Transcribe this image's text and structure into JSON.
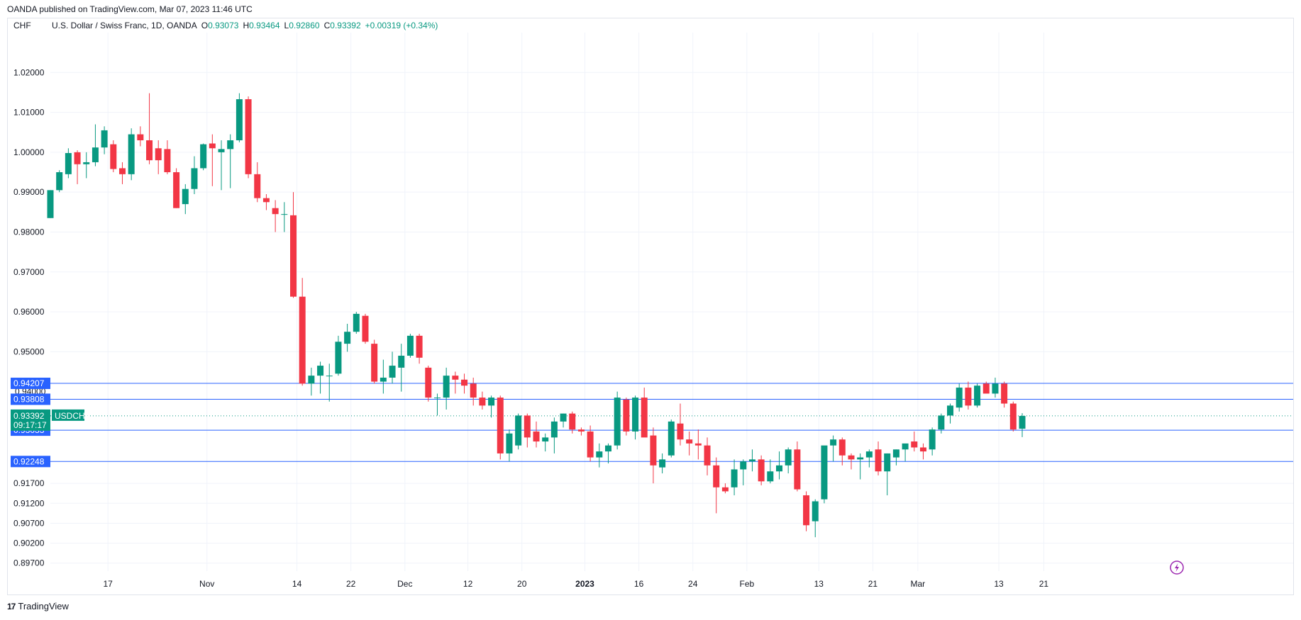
{
  "publisher_line": "OANDA published on TradingView.com, Mar 07, 2023 11:46 UTC",
  "footer": {
    "logo": "TradingView"
  },
  "colors": {
    "up": "#089981",
    "down": "#f23645",
    "level": "#2962ff",
    "grid": "#f0f3fa",
    "price": "#089981"
  },
  "chart_data": {
    "type": "candlestick",
    "currency": "CHF",
    "instrument": "U.S. Dollar / Swiss Franc, 1D, OANDA",
    "ohlc_legend": {
      "o_label": "O",
      "o": "0.93073",
      "h_label": "H",
      "h": "0.93464",
      "l_label": "L",
      "l": "0.92860",
      "c_label": "C",
      "c": "0.93392",
      "change": "+0.00319 (+0.34%)"
    },
    "y_ticks": [
      "1.02000",
      "1.01000",
      "1.00000",
      "0.99000",
      "0.98000",
      "0.97000",
      "0.96000",
      "0.95000",
      "0.91700",
      "0.91200",
      "0.90700",
      "0.90200",
      "0.89700"
    ],
    "x_ticks": [
      {
        "label": "17",
        "bold": false
      },
      {
        "label": "Nov",
        "bold": false
      },
      {
        "label": "14",
        "bold": false
      },
      {
        "label": "22",
        "bold": false
      },
      {
        "label": "Dec",
        "bold": false
      },
      {
        "label": "12",
        "bold": false
      },
      {
        "label": "20",
        "bold": false
      },
      {
        "label": "2023",
        "bold": true
      },
      {
        "label": "16",
        "bold": false
      },
      {
        "label": "24",
        "bold": false
      },
      {
        "label": "Feb",
        "bold": false
      },
      {
        "label": "13",
        "bold": false
      },
      {
        "label": "21",
        "bold": false
      },
      {
        "label": "Mar",
        "bold": false
      },
      {
        "label": "13",
        "bold": false
      },
      {
        "label": "21",
        "bold": false
      }
    ],
    "levels": [
      {
        "label": "0.94207",
        "value": 0.94207
      },
      {
        "label": "0.93808",
        "value": 0.93808
      },
      {
        "label": "0.93033",
        "value": 0.93033
      },
      {
        "label": "0.92248",
        "value": 0.92248
      }
    ],
    "hidden_tick": "0.94000",
    "current_price": {
      "value": 0.93392,
      "label": "0.93392",
      "symbol": "USDCHF",
      "countdown": "09:17:17"
    },
    "candles": [
      {
        "o": 0.9835,
        "h": 0.9905,
        "l": 0.9835,
        "c": 0.9905
      },
      {
        "o": 0.9905,
        "h": 0.9955,
        "l": 0.99,
        "c": 0.995
      },
      {
        "o": 0.9945,
        "h": 1.001,
        "l": 0.9935,
        "c": 0.9998
      },
      {
        "o": 1.0,
        "h": 1.0005,
        "l": 0.992,
        "c": 0.997
      },
      {
        "o": 0.997,
        "h": 1.0,
        "l": 0.9935,
        "c": 0.9975
      },
      {
        "o": 0.9975,
        "h": 1.007,
        "l": 0.9965,
        "c": 1.0012
      },
      {
        "o": 1.0012,
        "h": 1.0065,
        "l": 0.9995,
        "c": 1.0055
      },
      {
        "o": 1.002,
        "h": 1.003,
        "l": 0.995,
        "c": 0.9958
      },
      {
        "o": 0.996,
        "h": 0.9975,
        "l": 0.992,
        "c": 0.9945
      },
      {
        "o": 0.9945,
        "h": 1.006,
        "l": 0.993,
        "c": 1.0045
      },
      {
        "o": 1.0045,
        "h": 1.0065,
        "l": 1.0015,
        "c": 1.003
      },
      {
        "o": 1.003,
        "h": 1.0148,
        "l": 0.997,
        "c": 0.998
      },
      {
        "o": 1.001,
        "h": 1.003,
        "l": 0.9945,
        "c": 0.998
      },
      {
        "o": 1.0008,
        "h": 1.003,
        "l": 0.9945,
        "c": 0.995
      },
      {
        "o": 0.995,
        "h": 0.996,
        "l": 0.986,
        "c": 0.986
      },
      {
        "o": 0.987,
        "h": 0.992,
        "l": 0.9845,
        "c": 0.9908
      },
      {
        "o": 0.9908,
        "h": 0.999,
        "l": 0.9895,
        "c": 0.996
      },
      {
        "o": 0.996,
        "h": 1.0022,
        "l": 0.9955,
        "c": 1.002
      },
      {
        "o": 1.0022,
        "h": 1.0045,
        "l": 0.9915,
        "c": 1.001
      },
      {
        "o": 1.0,
        "h": 1.003,
        "l": 0.9905,
        "c": 1.0008
      },
      {
        "o": 1.0008,
        "h": 1.0045,
        "l": 0.991,
        "c": 1.003
      },
      {
        "o": 1.003,
        "h": 1.0148,
        "l": 1.0025,
        "c": 1.0133
      },
      {
        "o": 1.0133,
        "h": 1.014,
        "l": 0.9935,
        "c": 0.9945
      },
      {
        "o": 0.9945,
        "h": 0.9975,
        "l": 0.9875,
        "c": 0.9885
      },
      {
        "o": 0.9885,
        "h": 0.9895,
        "l": 0.9855,
        "c": 0.9875
      },
      {
        "o": 0.986,
        "h": 0.988,
        "l": 0.98,
        "c": 0.9845
      },
      {
        "o": 0.9845,
        "h": 0.9875,
        "l": 0.98,
        "c": 0.9845
      },
      {
        "o": 0.9842,
        "h": 0.99,
        "l": 0.9635,
        "c": 0.9638
      },
      {
        "o": 0.9638,
        "h": 0.9685,
        "l": 0.9415,
        "c": 0.942
      },
      {
        "o": 0.942,
        "h": 0.946,
        "l": 0.939,
        "c": 0.944
      },
      {
        "o": 0.944,
        "h": 0.9475,
        "l": 0.9395,
        "c": 0.9465
      },
      {
        "o": 0.944,
        "h": 0.947,
        "l": 0.9375,
        "c": 0.944
      },
      {
        "o": 0.9445,
        "h": 0.954,
        "l": 0.944,
        "c": 0.9525
      },
      {
        "o": 0.952,
        "h": 0.957,
        "l": 0.95,
        "c": 0.955
      },
      {
        "o": 0.955,
        "h": 0.96,
        "l": 0.9545,
        "c": 0.9595
      },
      {
        "o": 0.959,
        "h": 0.9595,
        "l": 0.952,
        "c": 0.9525
      },
      {
        "o": 0.952,
        "h": 0.953,
        "l": 0.942,
        "c": 0.9425
      },
      {
        "o": 0.9425,
        "h": 0.948,
        "l": 0.9395,
        "c": 0.9435
      },
      {
        "o": 0.9435,
        "h": 0.95,
        "l": 0.942,
        "c": 0.9465
      },
      {
        "o": 0.946,
        "h": 0.952,
        "l": 0.94,
        "c": 0.949
      },
      {
        "o": 0.949,
        "h": 0.9545,
        "l": 0.9485,
        "c": 0.954
      },
      {
        "o": 0.954,
        "h": 0.9545,
        "l": 0.947,
        "c": 0.9485
      },
      {
        "o": 0.946,
        "h": 0.9465,
        "l": 0.9375,
        "c": 0.9385
      },
      {
        "o": 0.9385,
        "h": 0.9395,
        "l": 0.934,
        "c": 0.9385
      },
      {
        "o": 0.9385,
        "h": 0.946,
        "l": 0.9355,
        "c": 0.944
      },
      {
        "o": 0.944,
        "h": 0.945,
        "l": 0.9395,
        "c": 0.943
      },
      {
        "o": 0.943,
        "h": 0.9445,
        "l": 0.9395,
        "c": 0.9415
      },
      {
        "o": 0.942,
        "h": 0.9435,
        "l": 0.9365,
        "c": 0.9385
      },
      {
        "o": 0.9385,
        "h": 0.94,
        "l": 0.9355,
        "c": 0.9365
      },
      {
        "o": 0.9365,
        "h": 0.939,
        "l": 0.9335,
        "c": 0.9385
      },
      {
        "o": 0.9385,
        "h": 0.939,
        "l": 0.923,
        "c": 0.9245
      },
      {
        "o": 0.9245,
        "h": 0.9305,
        "l": 0.9225,
        "c": 0.9295
      },
      {
        "o": 0.9265,
        "h": 0.9345,
        "l": 0.9255,
        "c": 0.934
      },
      {
        "o": 0.934,
        "h": 0.9345,
        "l": 0.926,
        "c": 0.9285
      },
      {
        "o": 0.93,
        "h": 0.9325,
        "l": 0.926,
        "c": 0.9275
      },
      {
        "o": 0.9275,
        "h": 0.9295,
        "l": 0.925,
        "c": 0.9285
      },
      {
        "o": 0.9285,
        "h": 0.9335,
        "l": 0.9245,
        "c": 0.9325
      },
      {
        "o": 0.9325,
        "h": 0.9345,
        "l": 0.931,
        "c": 0.9345
      },
      {
        "o": 0.9345,
        "h": 0.935,
        "l": 0.9295,
        "c": 0.9305
      },
      {
        "o": 0.9305,
        "h": 0.931,
        "l": 0.929,
        "c": 0.93
      },
      {
        "o": 0.93,
        "h": 0.9315,
        "l": 0.9225,
        "c": 0.9235
      },
      {
        "o": 0.9235,
        "h": 0.927,
        "l": 0.921,
        "c": 0.925
      },
      {
        "o": 0.925,
        "h": 0.927,
        "l": 0.922,
        "c": 0.9265
      },
      {
        "o": 0.9265,
        "h": 0.94,
        "l": 0.9255,
        "c": 0.9385
      },
      {
        "o": 0.938,
        "h": 0.9385,
        "l": 0.929,
        "c": 0.93
      },
      {
        "o": 0.93,
        "h": 0.939,
        "l": 0.928,
        "c": 0.9385
      },
      {
        "o": 0.9385,
        "h": 0.941,
        "l": 0.929,
        "c": 0.9285
      },
      {
        "o": 0.929,
        "h": 0.931,
        "l": 0.917,
        "c": 0.9215
      },
      {
        "o": 0.921,
        "h": 0.9245,
        "l": 0.9195,
        "c": 0.923
      },
      {
        "o": 0.924,
        "h": 0.933,
        "l": 0.9235,
        "c": 0.9325
      },
      {
        "o": 0.932,
        "h": 0.937,
        "l": 0.9265,
        "c": 0.928
      },
      {
        "o": 0.928,
        "h": 0.93,
        "l": 0.924,
        "c": 0.927
      },
      {
        "o": 0.927,
        "h": 0.9305,
        "l": 0.923,
        "c": 0.9265
      },
      {
        "o": 0.9265,
        "h": 0.9285,
        "l": 0.919,
        "c": 0.9215
      },
      {
        "o": 0.9215,
        "h": 0.9235,
        "l": 0.9095,
        "c": 0.916
      },
      {
        "o": 0.916,
        "h": 0.917,
        "l": 0.9145,
        "c": 0.915
      },
      {
        "o": 0.916,
        "h": 0.923,
        "l": 0.914,
        "c": 0.9205
      },
      {
        "o": 0.9205,
        "h": 0.923,
        "l": 0.9165,
        "c": 0.9225
      },
      {
        "o": 0.9225,
        "h": 0.9255,
        "l": 0.92,
        "c": 0.923
      },
      {
        "o": 0.923,
        "h": 0.924,
        "l": 0.9165,
        "c": 0.9175
      },
      {
        "o": 0.9175,
        "h": 0.923,
        "l": 0.917,
        "c": 0.92
      },
      {
        "o": 0.92,
        "h": 0.925,
        "l": 0.918,
        "c": 0.9215
      },
      {
        "o": 0.9215,
        "h": 0.926,
        "l": 0.9195,
        "c": 0.9255
      },
      {
        "o": 0.9255,
        "h": 0.9275,
        "l": 0.915,
        "c": 0.9155
      },
      {
        "o": 0.914,
        "h": 0.915,
        "l": 0.905,
        "c": 0.9065
      },
      {
        "o": 0.9075,
        "h": 0.913,
        "l": 0.9035,
        "c": 0.9125
      },
      {
        "o": 0.913,
        "h": 0.926,
        "l": 0.912,
        "c": 0.9265
      },
      {
        "o": 0.9265,
        "h": 0.929,
        "l": 0.9225,
        "c": 0.928
      },
      {
        "o": 0.928,
        "h": 0.9285,
        "l": 0.9215,
        "c": 0.924
      },
      {
        "o": 0.924,
        "h": 0.9245,
        "l": 0.9205,
        "c": 0.923
      },
      {
        "o": 0.923,
        "h": 0.9245,
        "l": 0.918,
        "c": 0.9235
      },
      {
        "o": 0.9235,
        "h": 0.9255,
        "l": 0.921,
        "c": 0.925
      },
      {
        "o": 0.9255,
        "h": 0.9275,
        "l": 0.919,
        "c": 0.92
      },
      {
        "o": 0.92,
        "h": 0.9245,
        "l": 0.914,
        "c": 0.9245
      },
      {
        "o": 0.9235,
        "h": 0.9255,
        "l": 0.9215,
        "c": 0.9255
      },
      {
        "o": 0.9255,
        "h": 0.9265,
        "l": 0.9225,
        "c": 0.927
      },
      {
        "o": 0.9275,
        "h": 0.93,
        "l": 0.925,
        "c": 0.926
      },
      {
        "o": 0.926,
        "h": 0.927,
        "l": 0.923,
        "c": 0.925
      },
      {
        "o": 0.9255,
        "h": 0.931,
        "l": 0.924,
        "c": 0.9305
      },
      {
        "o": 0.9305,
        "h": 0.9345,
        "l": 0.9295,
        "c": 0.934
      },
      {
        "o": 0.934,
        "h": 0.937,
        "l": 0.932,
        "c": 0.9365
      },
      {
        "o": 0.936,
        "h": 0.942,
        "l": 0.935,
        "c": 0.941
      },
      {
        "o": 0.941,
        "h": 0.9425,
        "l": 0.9355,
        "c": 0.9365
      },
      {
        "o": 0.9365,
        "h": 0.942,
        "l": 0.936,
        "c": 0.9415
      },
      {
        "o": 0.942,
        "h": 0.9425,
        "l": 0.94,
        "c": 0.9395
      },
      {
        "o": 0.9395,
        "h": 0.9435,
        "l": 0.9385,
        "c": 0.942
      },
      {
        "o": 0.942,
        "h": 0.9425,
        "l": 0.936,
        "c": 0.937
      },
      {
        "o": 0.937,
        "h": 0.9375,
        "l": 0.93,
        "c": 0.9305
      },
      {
        "o": 0.9307,
        "h": 0.9346,
        "l": 0.9286,
        "c": 0.9339
      }
    ]
  }
}
